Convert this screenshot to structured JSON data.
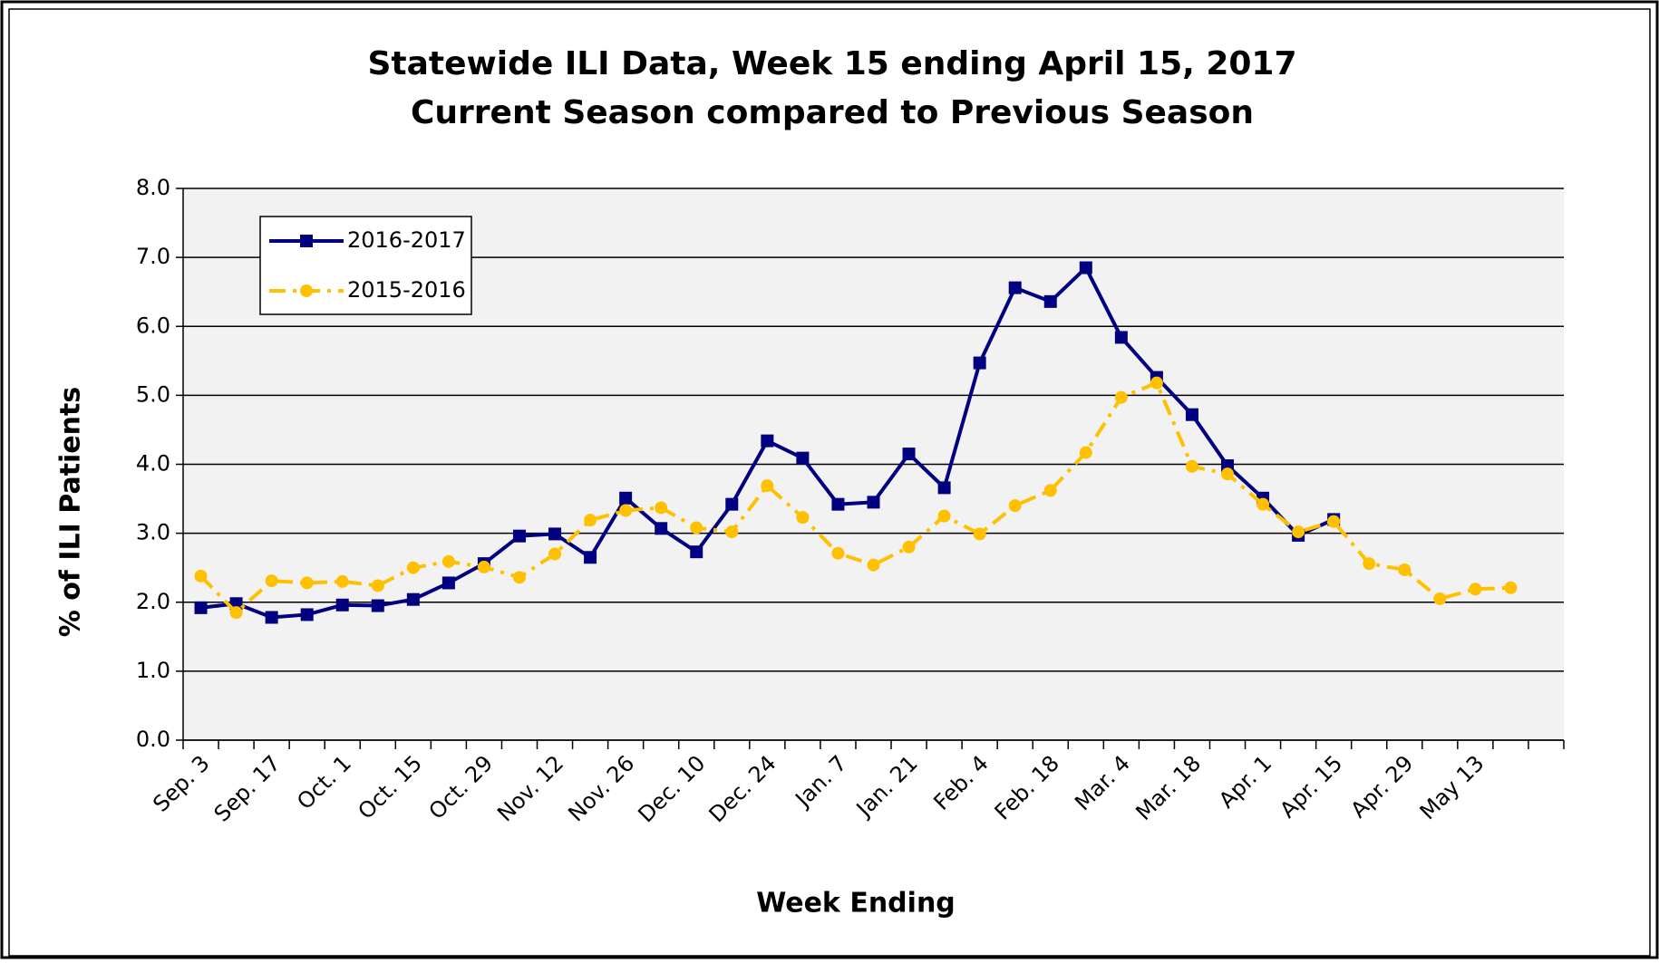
{
  "chart_data": {
    "type": "line",
    "title": "Statewide ILI Data, Week 15 ending April 15, 2017",
    "subtitle": "Current Season compared to Previous Season",
    "x_label": "Week Ending",
    "y_label": "% of ILI Patients",
    "categories": [
      "Sep. 3",
      null,
      "Sep. 17",
      null,
      "Oct. 1",
      null,
      "Oct. 15",
      null,
      "Oct. 29",
      null,
      "Nov. 12",
      null,
      "Nov. 26",
      null,
      "Dec. 10",
      null,
      "Dec. 24",
      null,
      "Jan. 7",
      null,
      "Jan. 21",
      null,
      "Feb. 4",
      null,
      "Feb. 18",
      null,
      "Mar. 4",
      null,
      "Mar. 18",
      null,
      "Apr. 1",
      null,
      "Apr. 15",
      null,
      "Apr. 29",
      null,
      "May 13",
      null,
      null
    ],
    "series": [
      {
        "name": "2016-2017",
        "color": "#000080",
        "marker": "square",
        "dash": "solid",
        "values": [
          1.92,
          1.98,
          1.78,
          1.82,
          1.96,
          1.95,
          2.04,
          2.28,
          2.56,
          2.96,
          2.99,
          2.65,
          3.51,
          3.07,
          2.73,
          3.42,
          4.34,
          4.09,
          3.42,
          3.45,
          4.15,
          3.66,
          5.47,
          6.56,
          6.36,
          6.85,
          5.84,
          5.26,
          4.72,
          3.98,
          3.51,
          2.97,
          3.2,
          null,
          null,
          null,
          null,
          null,
          null
        ]
      },
      {
        "name": "2015-2016",
        "color": "#ffc000",
        "marker": "circle",
        "dash": "dashdot",
        "values": [
          2.38,
          1.85,
          2.31,
          2.28,
          2.3,
          2.24,
          2.5,
          2.59,
          2.51,
          2.36,
          2.7,
          3.19,
          3.33,
          3.37,
          3.08,
          3.02,
          3.69,
          3.23,
          2.71,
          2.54,
          2.8,
          3.25,
          2.99,
          3.4,
          3.62,
          4.17,
          4.97,
          5.18,
          3.97,
          3.86,
          3.42,
          3.02,
          3.17,
          2.56,
          2.47,
          2.05,
          2.19,
          2.21,
          null
        ]
      }
    ],
    "ylim": [
      0,
      8
    ],
    "yticks": [
      {
        "value": 0,
        "label": "0.0"
      },
      {
        "value": 1,
        "label": "1.0"
      },
      {
        "value": 2,
        "label": "2.0"
      },
      {
        "value": 3,
        "label": "3.0"
      },
      {
        "value": 4,
        "label": "4.0"
      },
      {
        "value": 5,
        "label": "5.0"
      },
      {
        "value": 6,
        "label": "6.0"
      },
      {
        "value": 7,
        "label": "7.0"
      },
      {
        "value": 8,
        "label": "8.0"
      }
    ],
    "grid": true,
    "legend": "upper-left",
    "plot_background": "#f2f2f2"
  }
}
